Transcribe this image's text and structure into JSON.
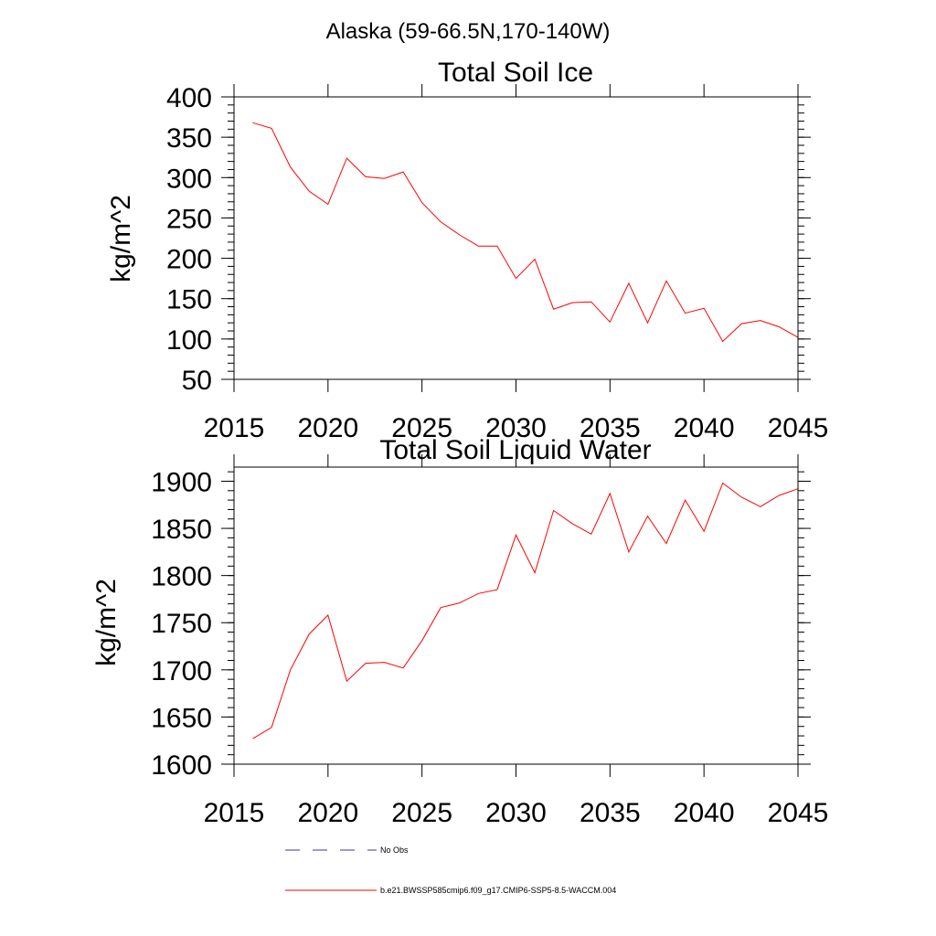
{
  "figure_title": "Alaska (59-66.5N,170-140W)",
  "chart_data": [
    {
      "type": "line",
      "title": "Total Soil Ice",
      "xlabel": "",
      "ylabel": "kg/m^2",
      "xlim": [
        2015,
        2045
      ],
      "ylim": [
        50,
        400
      ],
      "xticks": [
        2015,
        2020,
        2025,
        2030,
        2035,
        2040,
        2045
      ],
      "yticks": [
        50,
        100,
        150,
        200,
        250,
        300,
        350,
        400
      ],
      "series": [
        {
          "name": "b.e21.BWSSP585cmip6.f09_g17.CMIP6-SSP5-8.5-WACCM.004",
          "color": "#ff0000",
          "x": [
            2016,
            2017,
            2018,
            2019,
            2020,
            2021,
            2022,
            2023,
            2024,
            2025,
            2026,
            2027,
            2028,
            2029,
            2030,
            2031,
            2032,
            2033,
            2034,
            2035,
            2036,
            2037,
            2038,
            2039,
            2040,
            2041,
            2042,
            2043,
            2044,
            2045
          ],
          "values": [
            368,
            361,
            313,
            283,
            267,
            324,
            301,
            299,
            307,
            269,
            245,
            229,
            215,
            215,
            175,
            199,
            137,
            145,
            146,
            121,
            169,
            120,
            172,
            132,
            138,
            97,
            119,
            123,
            115,
            102
          ]
        }
      ]
    },
    {
      "type": "line",
      "title": "Total Soil Liquid Water",
      "xlabel": "",
      "ylabel": "kg/m^2",
      "xlim": [
        2015,
        2045
      ],
      "ylim": [
        1600,
        1915
      ],
      "xticks": [
        2015,
        2020,
        2025,
        2030,
        2035,
        2040,
        2045
      ],
      "yticks": [
        1600,
        1650,
        1700,
        1750,
        1800,
        1850,
        1900
      ],
      "series": [
        {
          "name": "b.e21.BWSSP585cmip6.f09_g17.CMIP6-SSP5-8.5-WACCM.004",
          "color": "#ff0000",
          "x": [
            2016,
            2017,
            2018,
            2019,
            2020,
            2021,
            2022,
            2023,
            2024,
            2025,
            2026,
            2027,
            2028,
            2029,
            2030,
            2031,
            2032,
            2033,
            2034,
            2035,
            2036,
            2037,
            2038,
            2039,
            2040,
            2041,
            2042,
            2043,
            2044,
            2045
          ],
          "values": [
            1627,
            1639,
            1700,
            1738,
            1758,
            1688,
            1707,
            1708,
            1702,
            1731,
            1766,
            1771,
            1781,
            1785,
            1843,
            1803,
            1869,
            1855,
            1844,
            1887,
            1825,
            1863,
            1834,
            1880,
            1847,
            1898,
            1883,
            1873,
            1885,
            1892
          ]
        }
      ]
    }
  ],
  "legend": {
    "entries": [
      {
        "label": "No Obs",
        "style": "dashed",
        "color": "#3b3b8f"
      },
      {
        "label": "b.e21.BWSSP585cmip6.f09_g17.CMIP6-SSP5-8.5-WACCM.004",
        "style": "solid",
        "color": "#ff0000"
      }
    ]
  }
}
